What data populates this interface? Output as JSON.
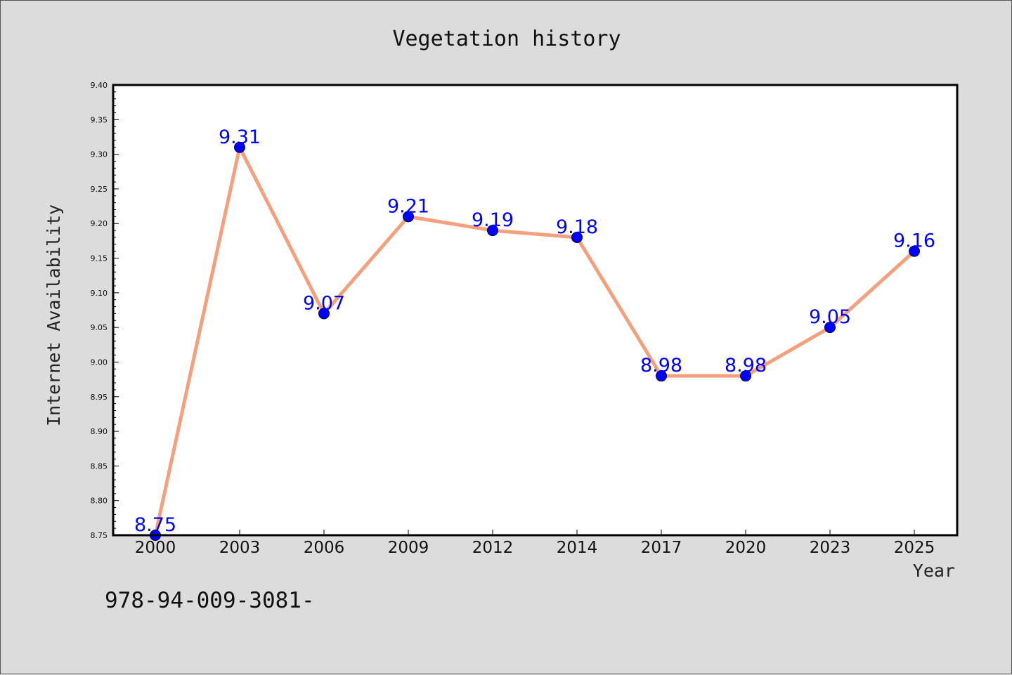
{
  "chart_data": {
    "type": "line",
    "title": "Vegetation history",
    "xlabel": "Year",
    "ylabel": "Internet Availability",
    "categories": [
      "2000",
      "2003",
      "2006",
      "2009",
      "2012",
      "2014",
      "2017",
      "2020",
      "2023",
      "2025"
    ],
    "series": [
      {
        "values": [
          8.75,
          9.31,
          9.07,
          9.21,
          9.19,
          9.18,
          8.98,
          8.98,
          9.05,
          9.16
        ],
        "data_labels": [
          "8.75",
          "9.31",
          "9.07",
          "9.21",
          "9.19",
          "9.18",
          "8.98",
          "8.98",
          "9.05",
          "9.16"
        ],
        "line_color": "#f4a07c",
        "marker_color": "#0000ff"
      }
    ],
    "ylim": [
      8.75,
      9.4
    ],
    "yticks": [
      "8.75",
      "8.80",
      "8.85",
      "8.90",
      "8.95",
      "9.00",
      "9.05",
      "9.10",
      "9.15",
      "9.20",
      "9.25",
      "9.30",
      "9.35",
      "9.40"
    ],
    "grid": false,
    "legend": "none"
  },
  "footer_text": "978-94-009-3081-"
}
